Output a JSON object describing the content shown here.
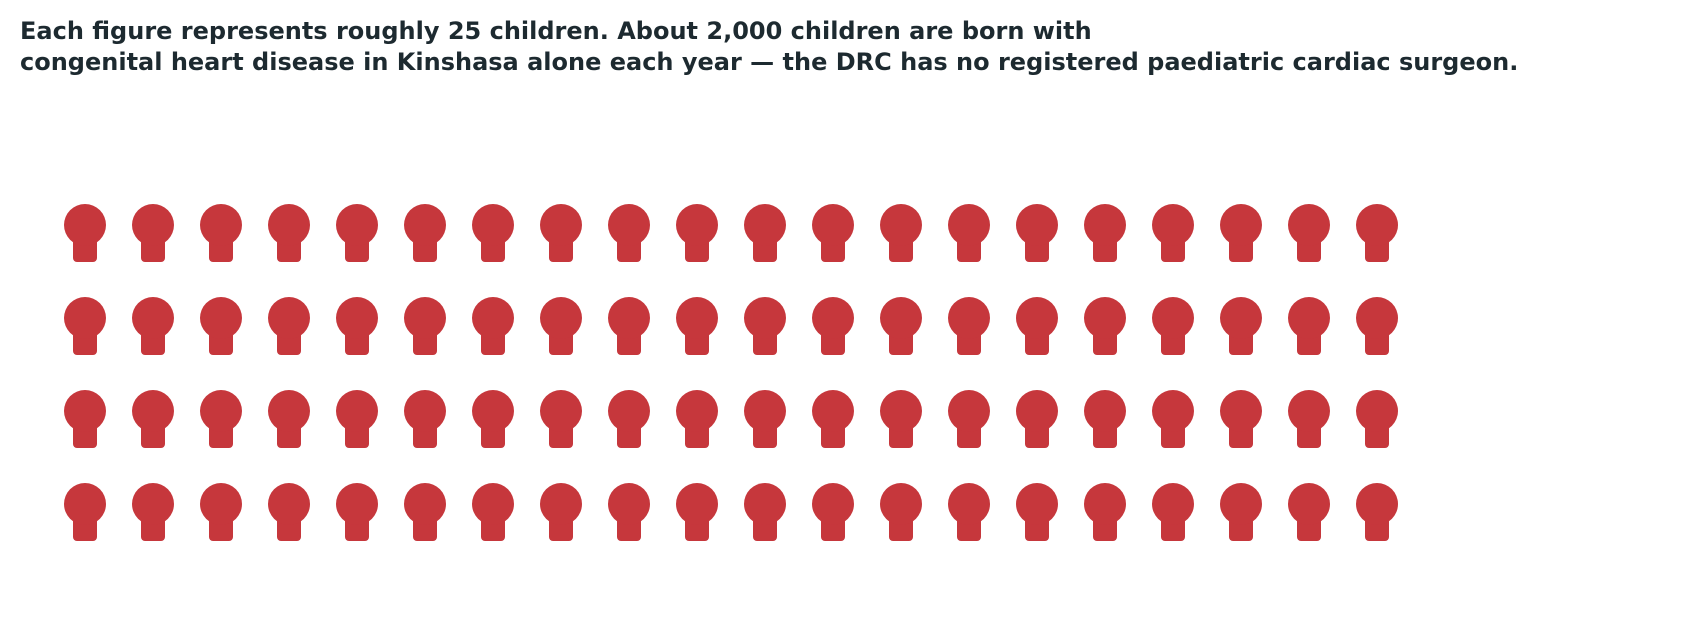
{
  "chart_data": {
    "type": "pictogram",
    "title": [
      "Each figure represents roughly 25 children. About 2,000 children are born with",
      "congenital heart disease in Kinshasa alone each year — the DRC has no registered paediatric cardiac surgeon."
    ],
    "value": 2000,
    "per_icon": 25,
    "color": "#c6373c"
  }
}
